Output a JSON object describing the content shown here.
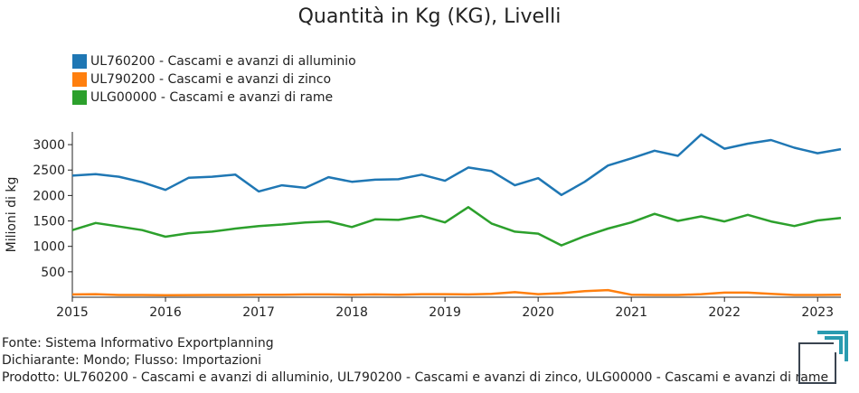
{
  "chart_data": {
    "type": "line",
    "title": "Quantità in Kg (KG), Livelli",
    "ylabel": "Milioni di kg",
    "xlabel": "",
    "ylim": [
      0,
      3250
    ],
    "xlim": [
      2015,
      2023.25
    ],
    "xticks": [
      2015,
      2016,
      2017,
      2018,
      2019,
      2020,
      2021,
      2022,
      2023
    ],
    "yticks": [
      500,
      1000,
      1500,
      2000,
      2500,
      3000
    ],
    "legend_position": "top-left",
    "x": [
      2015,
      2015.25,
      2015.5,
      2015.75,
      2016,
      2016.25,
      2016.5,
      2016.75,
      2017,
      2017.25,
      2017.5,
      2017.75,
      2018,
      2018.25,
      2018.5,
      2018.75,
      2019,
      2019.25,
      2019.5,
      2019.75,
      2020,
      2020.25,
      2020.5,
      2020.75,
      2021,
      2021.25,
      2021.5,
      2021.75,
      2022,
      2022.25,
      2022.5,
      2022.75,
      2023,
      2023.25
    ],
    "series": [
      {
        "name": "UL760200 - Cascami e avanzi di alluminio",
        "color": "#1f77b4",
        "values": [
          2390,
          2420,
          2370,
          2260,
          2110,
          2350,
          2370,
          2410,
          2080,
          2200,
          2150,
          2360,
          2270,
          2310,
          2320,
          2410,
          2290,
          2550,
          2480,
          2200,
          2340,
          2010,
          2270,
          2590,
          2730,
          2880,
          2780,
          3200,
          2920,
          3020,
          3090,
          2940,
          2830,
          2910
        ]
      },
      {
        "name": "UL790200 - Cascami e avanzi di zinco",
        "color": "#ff7f0e",
        "values": [
          55,
          60,
          45,
          45,
          40,
          42,
          45,
          45,
          50,
          50,
          55,
          55,
          50,
          55,
          50,
          60,
          60,
          55,
          65,
          100,
          60,
          80,
          120,
          140,
          50,
          45,
          45,
          60,
          90,
          90,
          65,
          45,
          45,
          50
        ]
      },
      {
        "name": "ULG00000 - Cascami e avanzi di rame",
        "color": "#2ca02c",
        "values": [
          1320,
          1460,
          1390,
          1320,
          1190,
          1260,
          1290,
          1350,
          1400,
          1430,
          1470,
          1490,
          1380,
          1530,
          1520,
          1600,
          1470,
          1770,
          1450,
          1290,
          1250,
          1020,
          1200,
          1350,
          1470,
          1640,
          1500,
          1590,
          1490,
          1620,
          1490,
          1400,
          1510,
          1560
        ]
      }
    ]
  },
  "footer": {
    "source": "Fonte: Sistema Informativo Exportplanning",
    "declarant": "Dichiarante: Mondo; Flusso: Importazioni",
    "product": "Prodotto: UL760200 - Cascami e avanzi di alluminio, UL790200 - Cascami e avanzi di zinco, ULG00000 - Cascami e avanzi di rame"
  },
  "colors": {
    "logo_dark": "#3a4450",
    "logo_teal": "#2a9bb0"
  }
}
